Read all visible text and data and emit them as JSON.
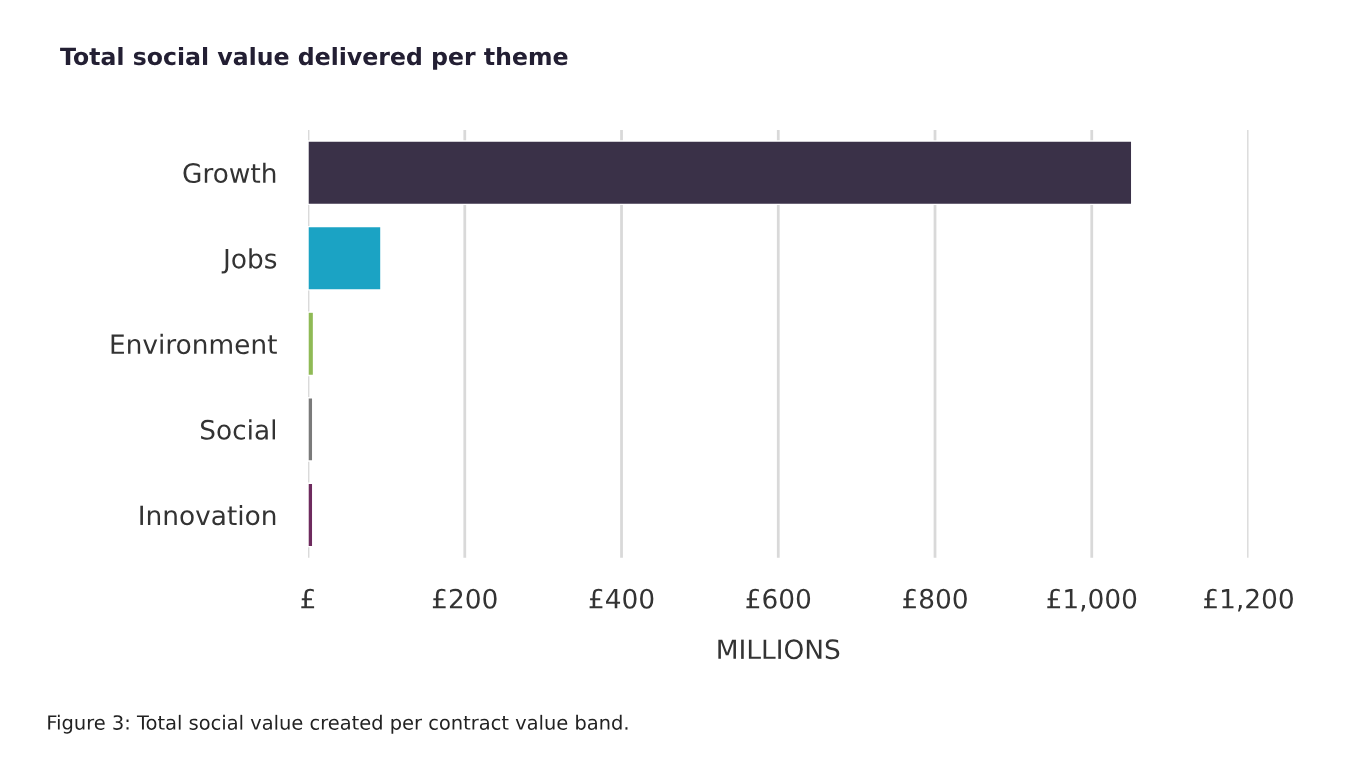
{
  "chart_data": {
    "type": "bar",
    "orientation": "horizontal",
    "title": "Total social value delivered per theme",
    "xlabel": "MILLIONS",
    "categories": [
      "Growth",
      "Jobs",
      "Environment",
      "Social",
      "Innovation"
    ],
    "values": [
      1051,
      93,
      7,
      6,
      6
    ],
    "colors": [
      "#3a3148",
      "#1ba3c4",
      "#8fba55",
      "#7a7a7a",
      "#6e2a5e"
    ],
    "xlim": [
      0,
      1200
    ],
    "xticks": [
      {
        "value": 0,
        "label": "£"
      },
      {
        "value": 200,
        "label": "£200"
      },
      {
        "value": 400,
        "label": "£400"
      },
      {
        "value": 600,
        "label": "£600"
      },
      {
        "value": 800,
        "label": "£800"
      },
      {
        "value": 1000,
        "label": "£1,000"
      },
      {
        "value": 1200,
        "label": "£1,200"
      }
    ],
    "grid": "x",
    "annotations": [
      "Figure 3: Total social value created per contract value band."
    ]
  }
}
